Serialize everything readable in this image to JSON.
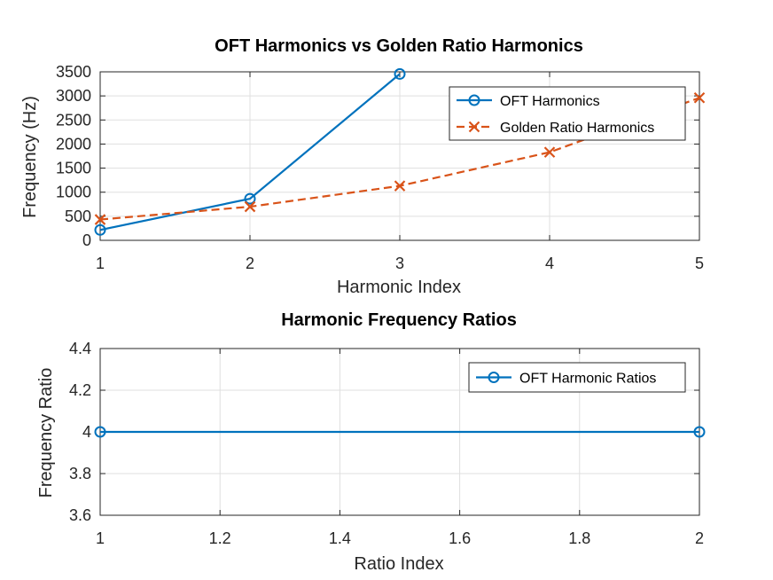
{
  "chart_data": [
    {
      "type": "line",
      "title": "OFT Harmonics vs Golden Ratio Harmonics",
      "xlabel": "Harmonic Index",
      "ylabel": "Frequency (Hz)",
      "xlim": [
        1,
        5
      ],
      "ylim": [
        0,
        3500
      ],
      "xticks": [
        1,
        2,
        3,
        4,
        5
      ],
      "yticks": [
        0,
        500,
        1000,
        1500,
        2000,
        2500,
        3000,
        3500
      ],
      "grid": true,
      "legend_position": "top-right",
      "series": [
        {
          "name": "OFT Harmonics",
          "x": [
            1,
            2,
            3
          ],
          "y": [
            216,
            864,
            3456
          ],
          "color": "#0072BD",
          "marker": "circle",
          "line_style": "solid"
        },
        {
          "name": "Golden Ratio Harmonics",
          "x": [
            1,
            2,
            3,
            4,
            5
          ],
          "y": [
            432,
            699,
            1131,
            1830,
            2961
          ],
          "color": "#D95319",
          "marker": "x",
          "line_style": "dashed"
        }
      ]
    },
    {
      "type": "line",
      "title": "Harmonic Frequency Ratios",
      "xlabel": "Ratio Index",
      "ylabel": "Frequency Ratio",
      "xlim": [
        1,
        2
      ],
      "ylim": [
        3.6,
        4.4
      ],
      "xticks": [
        1,
        1.2,
        1.4,
        1.6,
        1.8,
        2
      ],
      "yticks": [
        3.6,
        3.8,
        4,
        4.2,
        4.4
      ],
      "grid": true,
      "legend_position": "top-right",
      "series": [
        {
          "name": "OFT Harmonic Ratios",
          "x": [
            1,
            2
          ],
          "y": [
            4,
            4
          ],
          "color": "#0072BD",
          "marker": "circle",
          "line_style": "solid"
        }
      ]
    }
  ]
}
